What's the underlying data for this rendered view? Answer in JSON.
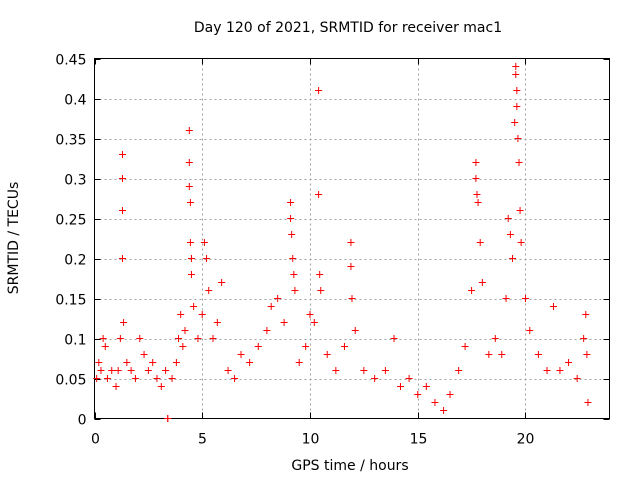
{
  "colors": {
    "series": "#ff0000",
    "axes": "#000000",
    "grid": "#a0a0a0"
  },
  "chart_data": {
    "type": "scatter",
    "title": "Day 120 of 2021, SRMTID for receiver mac1",
    "xlabel": "GPS time / hours",
    "ylabel": "SRMTID / TECUs",
    "xlim": [
      0,
      23.9
    ],
    "ylim": [
      0,
      0.45
    ],
    "xticks": [
      0,
      5,
      10,
      15,
      20
    ],
    "xtick_labels": [
      "0",
      "5",
      "10",
      "15",
      "20"
    ],
    "yticks": [
      0,
      0.05,
      0.1,
      0.15,
      0.2,
      0.25,
      0.3,
      0.35,
      0.4,
      0.45
    ],
    "ytick_labels": [
      "0",
      "0.05",
      "0.1",
      "0.15",
      "0.2",
      "0.25",
      "0.3",
      "0.35",
      "0.4",
      "0.45"
    ],
    "grid": true,
    "marker": "+",
    "series": [
      {
        "name": "SRMTID",
        "points": [
          [
            0.1,
            0.05
          ],
          [
            0.2,
            0.07
          ],
          [
            0.3,
            0.06
          ],
          [
            0.4,
            0.1
          ],
          [
            0.5,
            0.09
          ],
          [
            0.6,
            0.05
          ],
          [
            0.8,
            0.06
          ],
          [
            1.0,
            0.04
          ],
          [
            1.1,
            0.06
          ],
          [
            1.2,
            0.1
          ],
          [
            1.3,
            0.33
          ],
          [
            1.3,
            0.3
          ],
          [
            1.3,
            0.3
          ],
          [
            1.3,
            0.26
          ],
          [
            1.3,
            0.2
          ],
          [
            1.35,
            0.12
          ],
          [
            1.5,
            0.07
          ],
          [
            1.7,
            0.06
          ],
          [
            1.9,
            0.05
          ],
          [
            2.1,
            0.1
          ],
          [
            2.3,
            0.08
          ],
          [
            2.5,
            0.06
          ],
          [
            2.7,
            0.07
          ],
          [
            2.9,
            0.05
          ],
          [
            3.1,
            0.04
          ],
          [
            3.3,
            0.06
          ],
          [
            3.4,
            0.0
          ],
          [
            3.4,
            0.0
          ],
          [
            3.6,
            0.05
          ],
          [
            3.8,
            0.07
          ],
          [
            3.9,
            0.1
          ],
          [
            4.0,
            0.13
          ],
          [
            4.1,
            0.09
          ],
          [
            4.2,
            0.11
          ],
          [
            4.4,
            0.36
          ],
          [
            4.4,
            0.32
          ],
          [
            4.4,
            0.29
          ],
          [
            4.45,
            0.27
          ],
          [
            4.45,
            0.22
          ],
          [
            4.5,
            0.2
          ],
          [
            4.5,
            0.18
          ],
          [
            4.6,
            0.14
          ],
          [
            4.8,
            0.1
          ],
          [
            5.0,
            0.13
          ],
          [
            5.1,
            0.22
          ],
          [
            5.2,
            0.2
          ],
          [
            5.3,
            0.16
          ],
          [
            5.5,
            0.1
          ],
          [
            5.7,
            0.12
          ],
          [
            5.9,
            0.17
          ],
          [
            6.2,
            0.06
          ],
          [
            6.5,
            0.05
          ],
          [
            6.8,
            0.08
          ],
          [
            7.2,
            0.07
          ],
          [
            7.6,
            0.09
          ],
          [
            8.0,
            0.11
          ],
          [
            8.2,
            0.14
          ],
          [
            8.5,
            0.15
          ],
          [
            8.8,
            0.12
          ],
          [
            9.1,
            0.27
          ],
          [
            9.1,
            0.25
          ],
          [
            9.15,
            0.23
          ],
          [
            9.2,
            0.2
          ],
          [
            9.25,
            0.18
          ],
          [
            9.3,
            0.16
          ],
          [
            9.5,
            0.07
          ],
          [
            9.8,
            0.09
          ],
          [
            10.0,
            0.13
          ],
          [
            10.2,
            0.12
          ],
          [
            10.4,
            0.41
          ],
          [
            10.4,
            0.28
          ],
          [
            10.45,
            0.18
          ],
          [
            10.5,
            0.16
          ],
          [
            10.8,
            0.08
          ],
          [
            11.2,
            0.06
          ],
          [
            11.6,
            0.09
          ],
          [
            11.9,
            0.22
          ],
          [
            11.9,
            0.19
          ],
          [
            11.95,
            0.15
          ],
          [
            12.1,
            0.11
          ],
          [
            12.5,
            0.06
          ],
          [
            13.0,
            0.05
          ],
          [
            13.5,
            0.06
          ],
          [
            13.9,
            0.1
          ],
          [
            14.2,
            0.04
          ],
          [
            14.6,
            0.05
          ],
          [
            15.0,
            0.03
          ],
          [
            15.4,
            0.04
          ],
          [
            15.8,
            0.02
          ],
          [
            16.2,
            0.01
          ],
          [
            16.5,
            0.03
          ],
          [
            16.9,
            0.06
          ],
          [
            17.2,
            0.09
          ],
          [
            17.5,
            0.16
          ],
          [
            17.7,
            0.32
          ],
          [
            17.7,
            0.3
          ],
          [
            17.75,
            0.28
          ],
          [
            17.8,
            0.27
          ],
          [
            17.9,
            0.22
          ],
          [
            18.0,
            0.17
          ],
          [
            18.3,
            0.08
          ],
          [
            18.6,
            0.1
          ],
          [
            18.9,
            0.08
          ],
          [
            19.1,
            0.15
          ],
          [
            19.2,
            0.25
          ],
          [
            19.3,
            0.23
          ],
          [
            19.4,
            0.2
          ],
          [
            19.5,
            0.37
          ],
          [
            19.55,
            0.44
          ],
          [
            19.55,
            0.43
          ],
          [
            19.6,
            0.41
          ],
          [
            19.6,
            0.39
          ],
          [
            19.65,
            0.35
          ],
          [
            19.7,
            0.32
          ],
          [
            19.75,
            0.26
          ],
          [
            19.8,
            0.22
          ],
          [
            20.0,
            0.15
          ],
          [
            20.2,
            0.11
          ],
          [
            20.6,
            0.08
          ],
          [
            21.0,
            0.06
          ],
          [
            21.3,
            0.14
          ],
          [
            21.6,
            0.06
          ],
          [
            22.0,
            0.07
          ],
          [
            22.4,
            0.05
          ],
          [
            22.7,
            0.1
          ],
          [
            22.8,
            0.13
          ],
          [
            22.85,
            0.08
          ],
          [
            22.9,
            0.02
          ]
        ]
      }
    ]
  }
}
